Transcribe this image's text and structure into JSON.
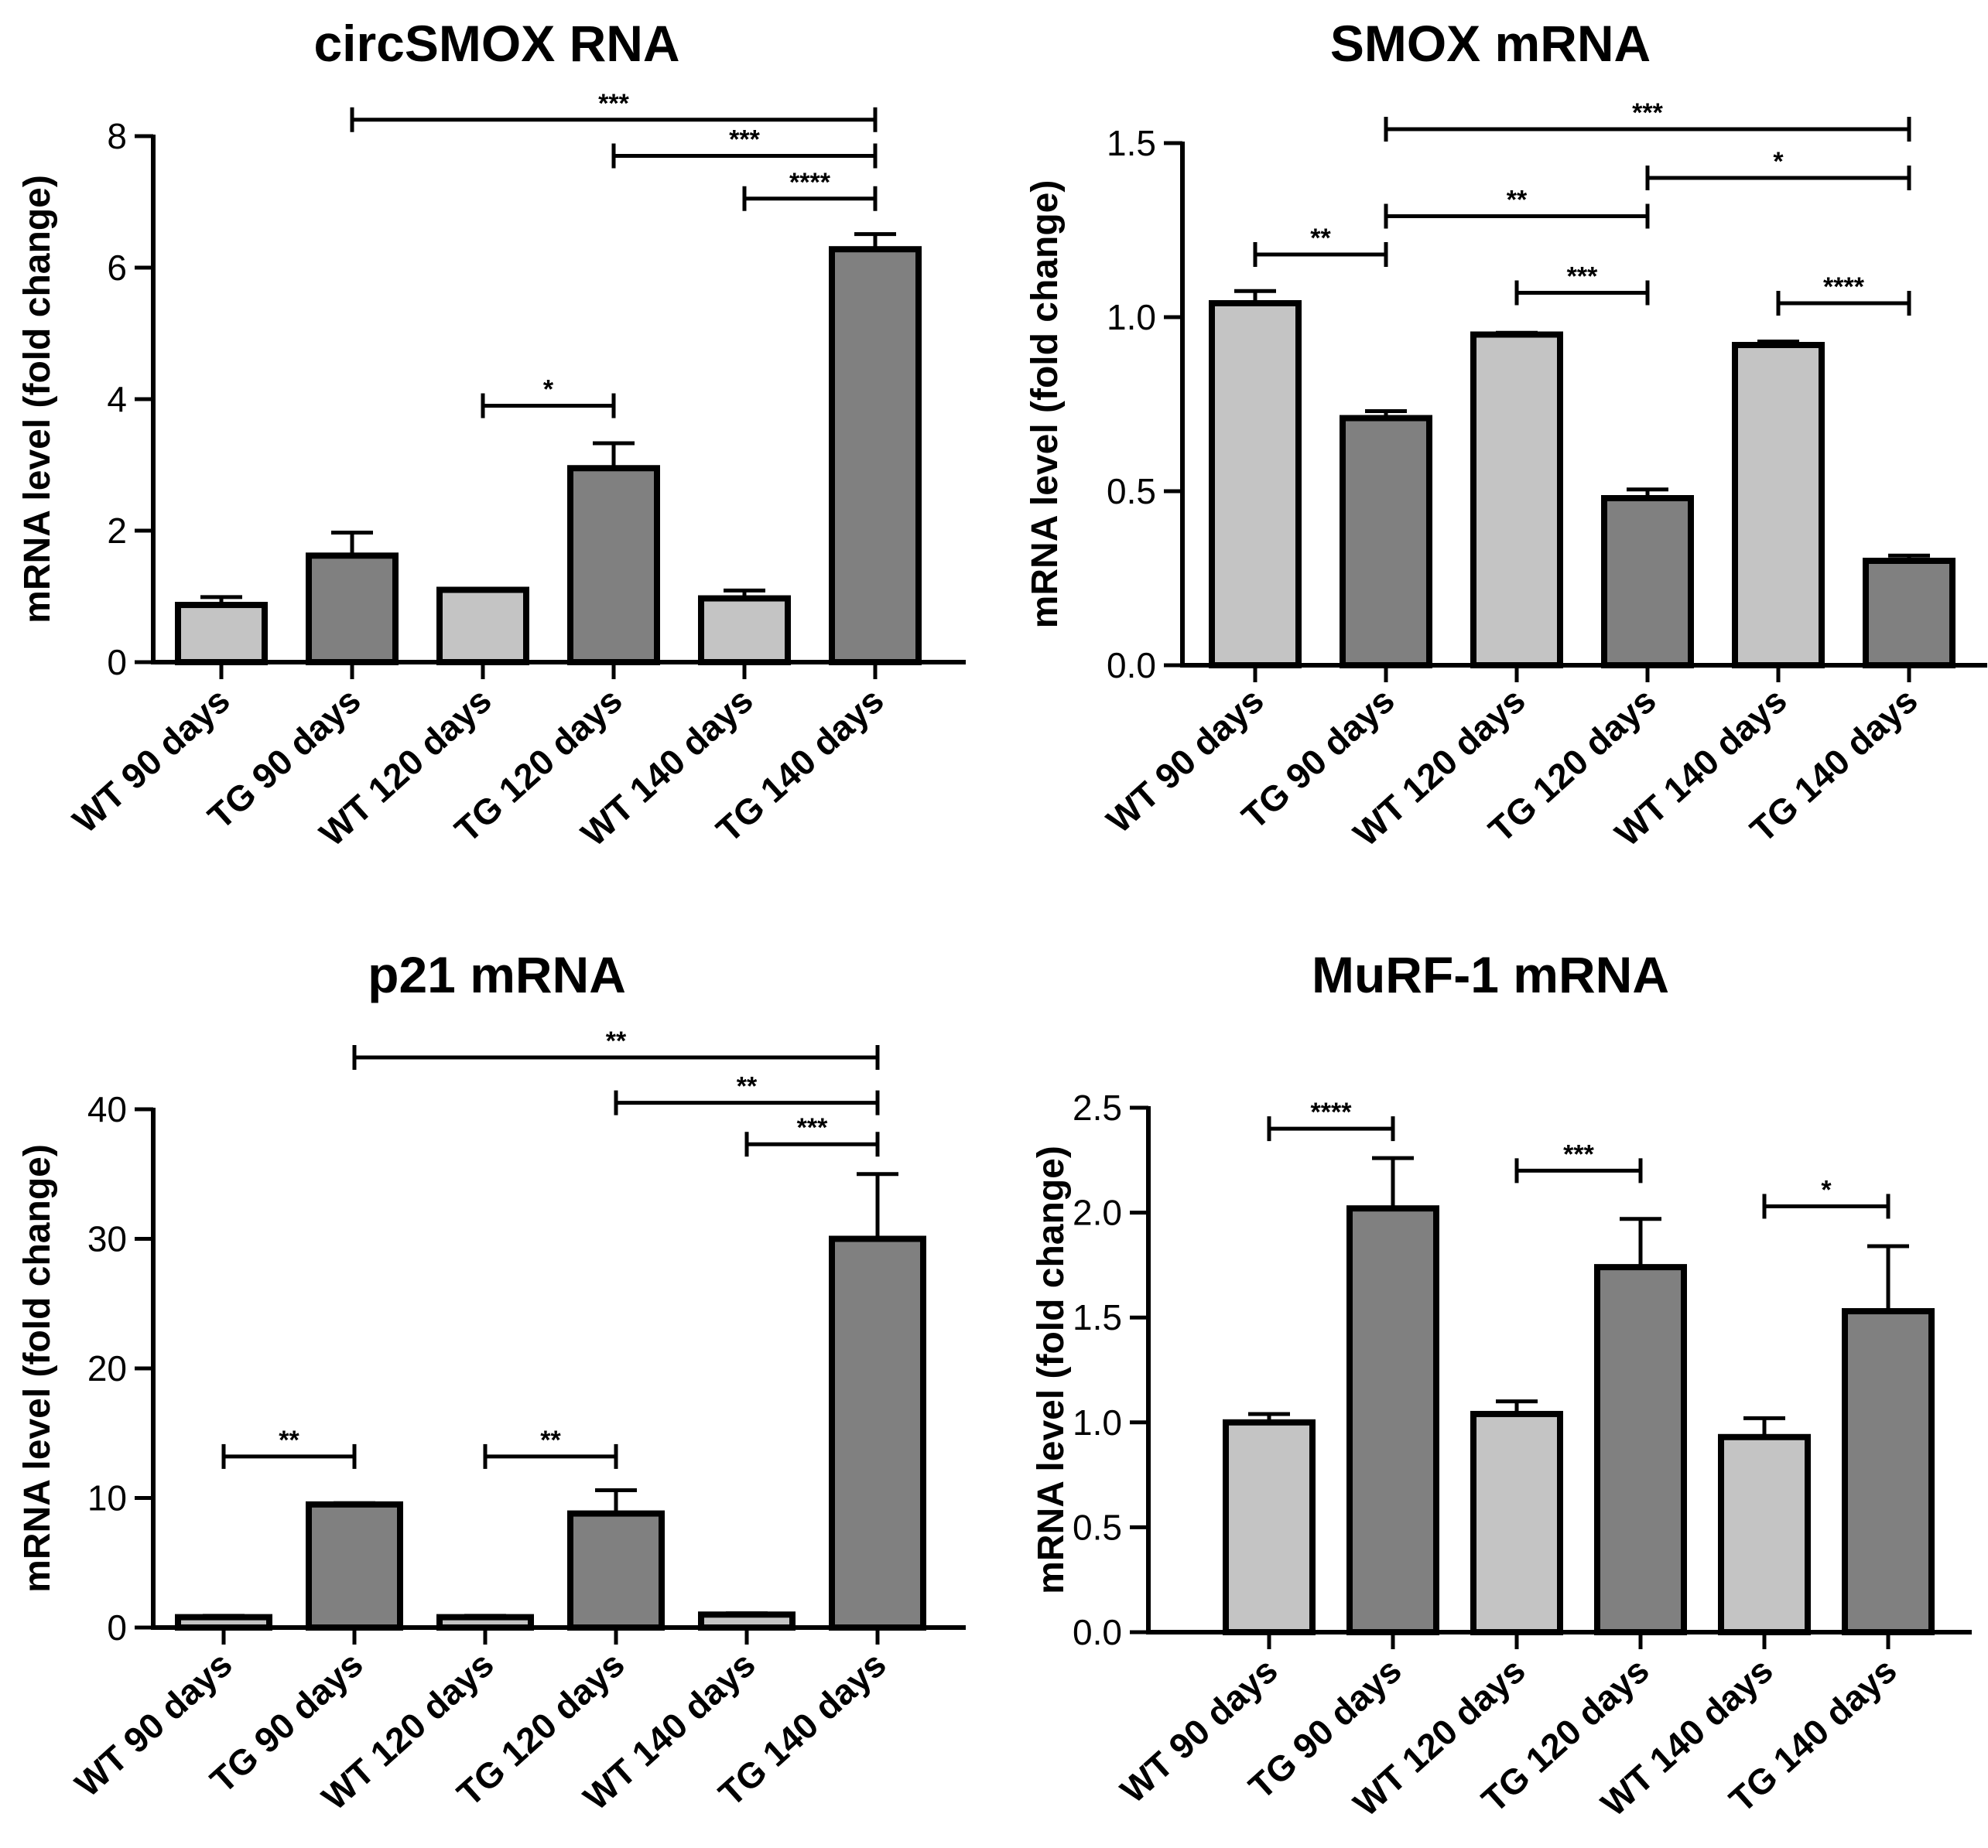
{
  "figure": {
    "colors": {
      "wt": "#c4c4c4",
      "tg": "#808080",
      "stroke": "#000000"
    }
  },
  "chart_data": [
    {
      "type": "bar",
      "title": "circSMOX RNA",
      "ylabel": "mRNA level (fold change)",
      "xlabel": "",
      "categories": [
        "WT 90 days",
        "TG 90 days",
        "WT 120 days",
        "TG 120 days",
        "WT 140 days",
        "TG 140 days"
      ],
      "values": [
        0.87,
        1.62,
        1.1,
        2.95,
        0.97,
        6.28
      ],
      "errors": [
        0.12,
        0.35,
        0.0,
        0.38,
        0.12,
        0.23
      ],
      "group": [
        "WT",
        "TG",
        "WT",
        "TG",
        "WT",
        "TG"
      ],
      "ylim": [
        0,
        8
      ],
      "yticks": [
        0,
        2,
        4,
        6,
        8
      ],
      "ytick_labels": [
        "0",
        "2",
        "4",
        "6",
        "8"
      ],
      "significance": [
        {
          "from": 1,
          "to": 5,
          "y": 8.25,
          "label": "***"
        },
        {
          "from": 3,
          "to": 5,
          "y": 7.7,
          "label": "***"
        },
        {
          "from": 4,
          "to": 5,
          "y": 7.05,
          "label": "****"
        },
        {
          "from": 2,
          "to": 3,
          "y": 3.9,
          "label": "*"
        }
      ]
    },
    {
      "type": "bar",
      "title": "SMOX mRNA",
      "ylabel": "mRNA level (fold change)",
      "xlabel": "",
      "categories": [
        "WT 90 days",
        "TG 90 days",
        "WT 120 days",
        "TG 120 days",
        "WT 140 days",
        "TG 140 days"
      ],
      "values": [
        1.04,
        0.71,
        0.95,
        0.48,
        0.92,
        0.3
      ],
      "errors": [
        0.035,
        0.02,
        0.005,
        0.025,
        0.01,
        0.015
      ],
      "group": [
        "WT",
        "TG",
        "WT",
        "TG",
        "WT",
        "TG"
      ],
      "ylim": [
        0,
        1.5
      ],
      "yticks": [
        0,
        0.5,
        1.0,
        1.5
      ],
      "ytick_labels": [
        "0.0",
        "0.5",
        "1.0",
        "1.5"
      ],
      "significance": [
        {
          "from": 1,
          "to": 5,
          "y": 1.54,
          "label": "***"
        },
        {
          "from": 3,
          "to": 5,
          "y": 1.4,
          "label": "*"
        },
        {
          "from": 1,
          "to": 3,
          "y": 1.29,
          "label": "**"
        },
        {
          "from": 0,
          "to": 1,
          "y": 1.18,
          "label": "**"
        },
        {
          "from": 2,
          "to": 3,
          "y": 1.07,
          "label": "***"
        },
        {
          "from": 4,
          "to": 5,
          "y": 1.04,
          "label": "****"
        }
      ]
    },
    {
      "type": "bar",
      "title": "p21 mRNA",
      "ylabel": "mRNA level (fold change)",
      "xlabel": "",
      "categories": [
        "WT 90 days",
        "TG 90 days",
        "WT 120 days",
        "TG 120 days",
        "WT 140 days",
        "TG 140 days"
      ],
      "values": [
        0.8,
        9.5,
        0.8,
        8.8,
        1.0,
        30.0
      ],
      "errors": [
        0.1,
        0.1,
        0.1,
        1.8,
        0.1,
        5.0
      ],
      "group": [
        "WT",
        "TG",
        "WT",
        "TG",
        "WT",
        "TG"
      ],
      "ylim": [
        0,
        40
      ],
      "yticks": [
        0,
        10,
        20,
        30,
        40
      ],
      "ytick_labels": [
        "0",
        "10",
        "20",
        "30",
        "40"
      ],
      "significance": [
        {
          "from": 1,
          "to": 5,
          "y": 44,
          "label": "**"
        },
        {
          "from": 3,
          "to": 5,
          "y": 40.5,
          "label": "**"
        },
        {
          "from": 4,
          "to": 5,
          "y": 37.3,
          "label": "***"
        },
        {
          "from": 0,
          "to": 1,
          "y": 13.2,
          "label": "**"
        },
        {
          "from": 2,
          "to": 3,
          "y": 13.2,
          "label": "**"
        }
      ]
    },
    {
      "type": "bar",
      "title": "MuRF-1 mRNA",
      "ylabel": "mRNA level (fold change)",
      "xlabel": "",
      "categories": [
        "WT 90 days",
        "TG 90 days",
        "WT 120 days",
        "TG 120 days",
        "WT 140 days",
        "TG 140 days"
      ],
      "values": [
        1.0,
        2.02,
        1.04,
        1.74,
        0.93,
        1.53
      ],
      "errors": [
        0.04,
        0.24,
        0.06,
        0.23,
        0.09,
        0.31
      ],
      "group": [
        "WT",
        "TG",
        "WT",
        "TG",
        "WT",
        "TG"
      ],
      "ylim": [
        0,
        2.5
      ],
      "yticks": [
        0,
        0.5,
        1.0,
        1.5,
        2.0,
        2.5
      ],
      "ytick_labels": [
        "0.0",
        "0.5",
        "1.0",
        "1.5",
        "2.0",
        "2.5"
      ],
      "significance": [
        {
          "from": 0,
          "to": 1,
          "y": 2.4,
          "label": "****"
        },
        {
          "from": 2,
          "to": 3,
          "y": 2.2,
          "label": "***"
        },
        {
          "from": 4,
          "to": 5,
          "y": 2.03,
          "label": "*"
        }
      ]
    }
  ]
}
